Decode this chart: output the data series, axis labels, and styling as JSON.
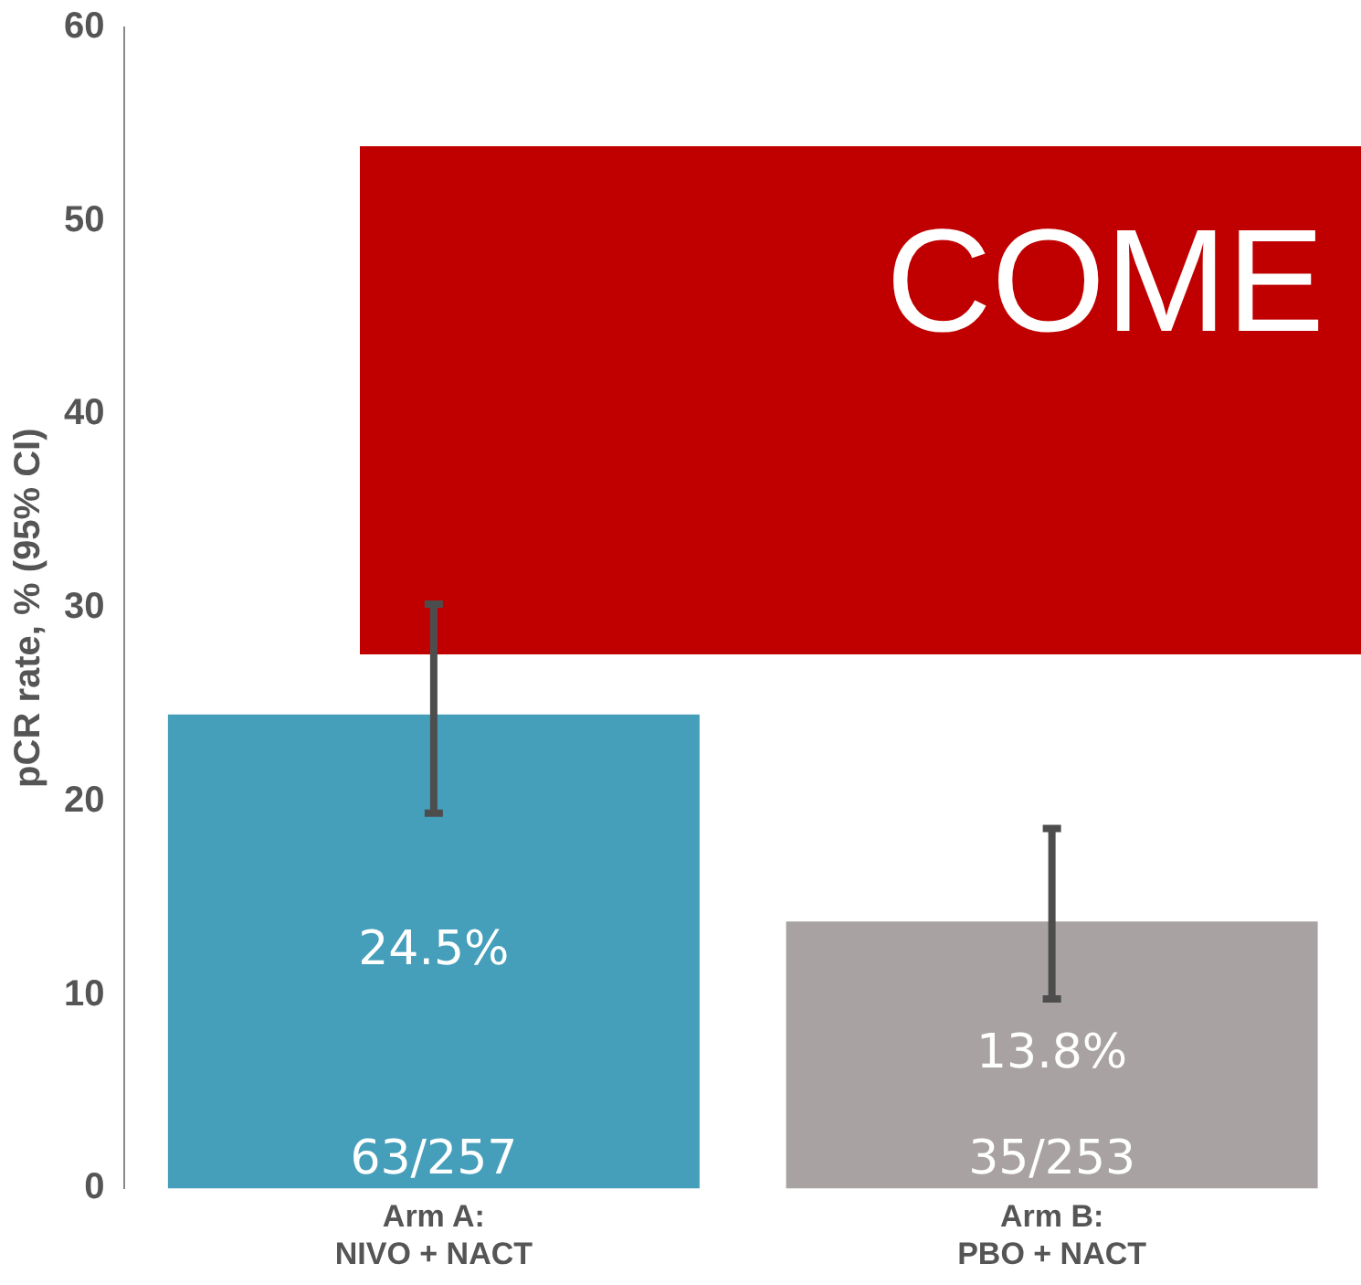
{
  "chart_data": {
    "type": "bar",
    "ylabel": "pCR rate, % (95% CI)",
    "categories": [
      "Arm A:\nNIVO + NACT",
      "Arm B:\nPBO + NACT"
    ],
    "values": [
      24.5,
      13.8
    ],
    "colors": [
      "#459fba",
      "#a8a2a2"
    ],
    "errors": [
      [
        19.4,
        30.2
      ],
      [
        9.8,
        18.6
      ]
    ],
    "value_labels": [
      "24.5%",
      "13.8%"
    ],
    "annotations": [
      "COME",
      "63/257",
      "35/253"
    ],
    "ylim": [
      0,
      60
    ],
    "yticks": [
      0,
      10,
      20,
      30,
      40,
      50,
      60
    ],
    "grid": false,
    "legend": false
  }
}
